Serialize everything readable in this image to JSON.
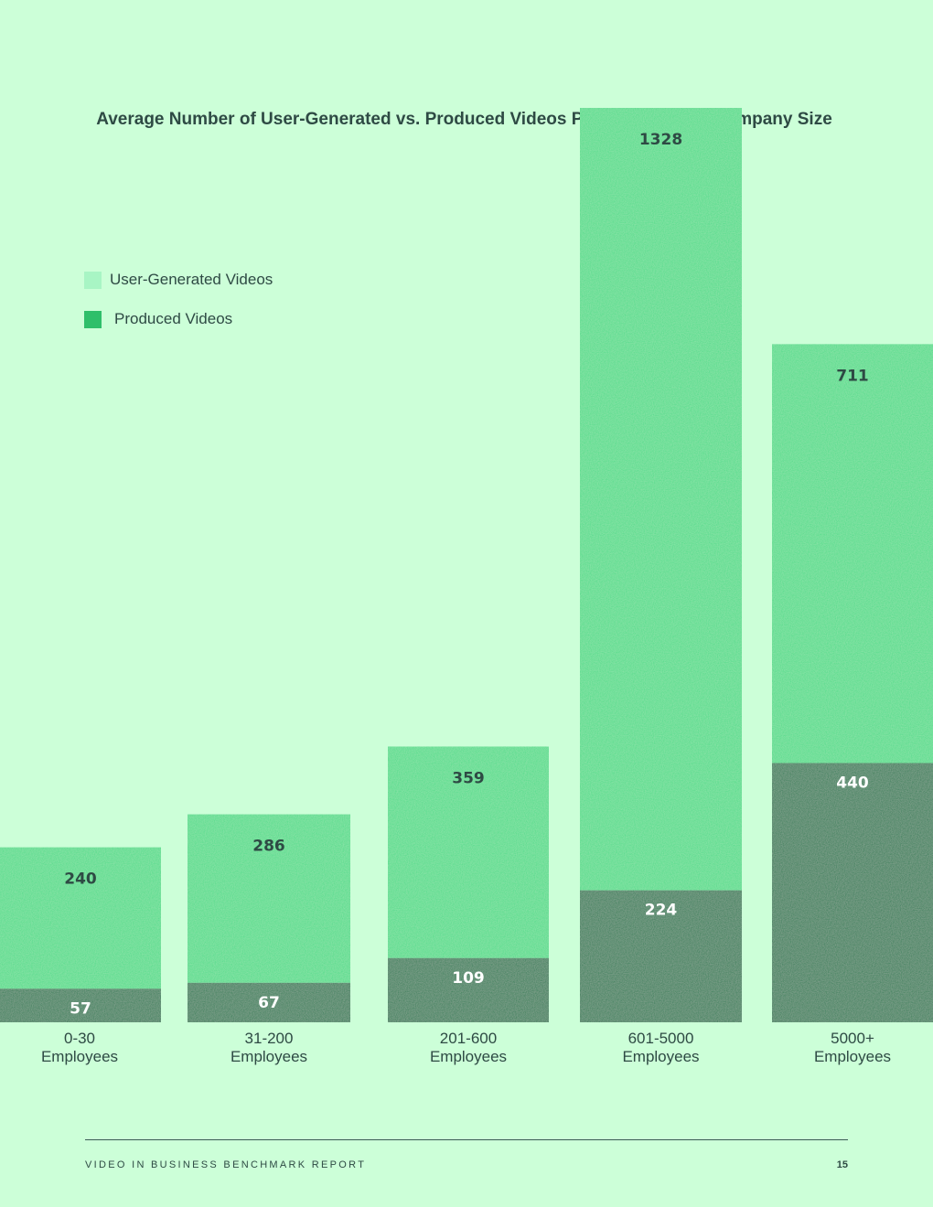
{
  "chart_data": {
    "type": "bar",
    "stacked": true,
    "title": "Average Number of User-Generated vs. Produced Videos Per Company by Company Size",
    "categories": [
      "0-30\nEmployees",
      "31-200\nEmployees",
      "201-600\nEmployees",
      "601-5000\nEmployees",
      "5000+\nEmployees"
    ],
    "categories_lines": [
      [
        "0-30",
        "Employees"
      ],
      [
        "31-200",
        "Employees"
      ],
      [
        "201-600",
        "Employees"
      ],
      [
        "601-5000",
        "Employees"
      ],
      [
        "5000+",
        "Employees"
      ]
    ],
    "series": [
      {
        "name": "Produced Videos",
        "values": [
          57,
          67,
          109,
          224,
          440
        ],
        "color": "#2e7d55",
        "label_color": "#ffffff"
      },
      {
        "name": "User-Generated Videos",
        "values": [
          240,
          286,
          359,
          1328,
          711
        ],
        "color": "#4ddc88",
        "label_color": "#2e4a44"
      }
    ],
    "ylim": [
      0,
      1552
    ],
    "xlabel": "",
    "ylabel": "",
    "grid": false,
    "legend_position": "top-left"
  },
  "legend": {
    "items": [
      {
        "label": "User-Generated Videos",
        "color": "#a8f5c4"
      },
      {
        "label": "Produced Videos",
        "color": "#2fbf6a"
      }
    ]
  },
  "footer": {
    "report_name": "VIDEO IN BUSINESS BENCHMARK REPORT",
    "page_number": "15"
  },
  "colors": {
    "background": "#ccffd8",
    "text": "#2e4a44"
  }
}
